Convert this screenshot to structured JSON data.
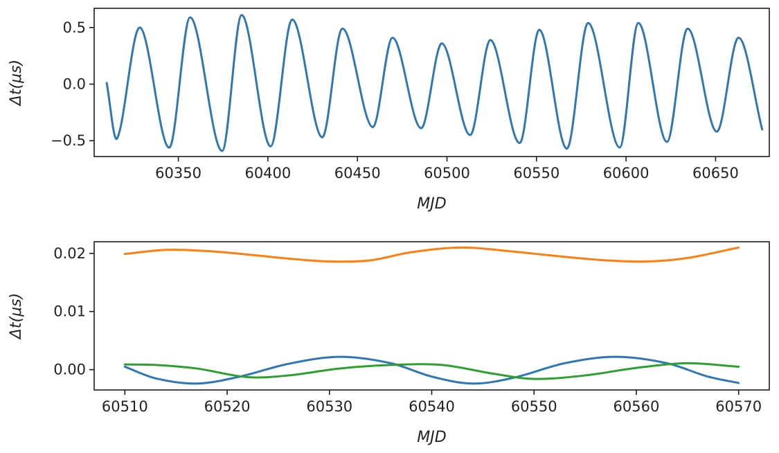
{
  "chart_data": [
    {
      "type": "line",
      "title": "",
      "xlabel": "MJD",
      "ylabel": "Δt(μs)",
      "xlim": [
        60303,
        60680
      ],
      "ylim": [
        -0.64,
        0.67
      ],
      "x_ticks": [
        60300,
        60350,
        60400,
        60450,
        60500,
        60550,
        60600,
        60650
      ],
      "x_tick_labels": [
        "60300",
        "60350",
        "60400",
        "60450",
        "60500",
        "60550",
        "60600",
        "60650"
      ],
      "y_ticks": [
        0.5,
        0.0,
        -0.5
      ],
      "y_tick_labels": [
        "0.5",
        "0.0",
        "−0.5"
      ],
      "grid": false,
      "series": [
        {
          "color": "#2f77b4",
          "x": [
            60310,
            60315.8,
            60328.5,
            60345,
            60356.6,
            60374.5,
            60385.3,
            60401.5,
            60413.5,
            60430.3,
            60441.5,
            60458.5,
            60469.6,
            60485.5,
            60497.2,
            60513,
            60524.3,
            60540.7,
            60551.6,
            60567,
            60578.8,
            60596.5,
            60606.8,
            60622.8,
            60634.3,
            60650.6,
            60662.8,
            60676
          ],
          "y": [
            0.01,
            -0.48,
            0.5,
            -0.56,
            0.59,
            -0.59,
            0.61,
            -0.55,
            0.57,
            -0.47,
            0.49,
            -0.38,
            0.41,
            -0.39,
            0.36,
            -0.45,
            0.39,
            -0.52,
            0.48,
            -0.57,
            0.54,
            -0.56,
            0.54,
            -0.51,
            0.49,
            -0.42,
            0.41,
            -0.4
          ]
        }
      ]
    },
    {
      "type": "line",
      "title": "",
      "xlabel": "MJD",
      "ylabel": "Δt(μs)",
      "xlim": [
        60507,
        60573
      ],
      "ylim": [
        -0.0035,
        0.022
      ],
      "x_ticks": [
        60510,
        60520,
        60530,
        60540,
        60550,
        60560,
        60570
      ],
      "x_tick_labels": [
        "60510",
        "60520",
        "60530",
        "60540",
        "60550",
        "60560",
        "60570"
      ],
      "y_ticks": [
        0.02,
        0.01,
        0.0
      ],
      "y_tick_labels": [
        "0.02",
        "0.01",
        "0.00"
      ],
      "grid": false,
      "series": [
        {
          "color": "#ff7f0e",
          "x": [
            60510,
            60514,
            60518,
            60522,
            60526,
            60530,
            60534,
            60538,
            60543,
            60548,
            60553,
            60557,
            60561,
            60565,
            60570
          ],
          "y": [
            0.0199,
            0.0206,
            0.0204,
            0.0198,
            0.0191,
            0.0186,
            0.0188,
            0.0202,
            0.021,
            0.0203,
            0.0194,
            0.0188,
            0.0186,
            0.0192,
            0.021
          ]
        },
        {
          "color": "#2f77b4",
          "x": [
            60510,
            60513,
            60517,
            60521,
            60526,
            60531,
            60536,
            60540,
            60544,
            60548,
            60553,
            60558,
            60563,
            60567,
            60570
          ],
          "y": [
            0.0005,
            -0.0015,
            -0.0024,
            -0.0013,
            0.001,
            0.0022,
            0.0011,
            -0.0012,
            -0.0024,
            -0.0014,
            0.0011,
            0.0022,
            0.0011,
            -0.0012,
            -0.0023
          ]
        },
        {
          "color": "#2ca02c",
          "x": [
            60510,
            60513,
            60517,
            60522,
            60526,
            60531,
            60536,
            60541,
            60546,
            60550,
            60555,
            60560,
            60565,
            60570
          ],
          "y": [
            0.0009,
            0.0008,
            0.0002,
            -0.0013,
            -0.001,
            0.0002,
            0.0008,
            0.0008,
            -0.0007,
            -0.0016,
            -0.001,
            0.0003,
            0.0011,
            0.0005
          ]
        }
      ]
    }
  ]
}
